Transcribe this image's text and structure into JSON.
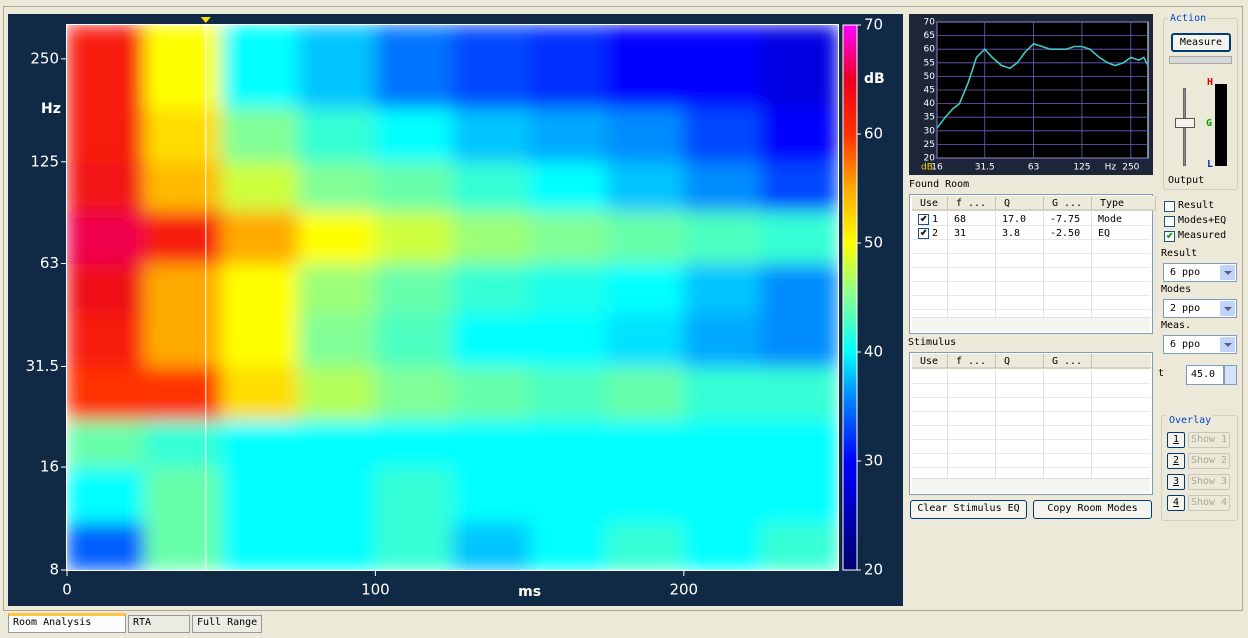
{
  "chart_data": [
    {
      "type": "heatmap",
      "y_label": "Hz",
      "x_label": "ms",
      "colorbar_label": "dB",
      "xlim": [
        0,
        250
      ],
      "xticks": [
        0,
        100,
        200
      ],
      "ylim": [
        8,
        314
      ],
      "yticks": [
        8,
        16,
        31.5,
        63,
        125,
        250
      ],
      "log_y": true,
      "clim": [
        20,
        70
      ],
      "cticks": [
        20,
        30,
        40,
        50,
        60,
        70
      ],
      "cursor_x": 45,
      "x_edges": [
        0,
        25,
        50,
        75,
        100,
        125,
        150,
        175,
        200,
        225,
        250
      ],
      "y_edges": [
        8,
        11,
        16,
        22,
        31.5,
        45,
        63,
        90,
        125,
        180,
        314
      ],
      "values": [
        [
          34,
          44,
          40,
          40,
          42,
          38,
          40,
          42,
          40,
          42
        ],
        [
          40,
          44,
          40,
          40,
          42,
          40,
          40,
          40,
          40,
          40
        ],
        [
          44,
          42,
          40,
          40,
          40,
          40,
          40,
          40,
          40,
          40
        ],
        [
          60,
          60,
          52,
          47,
          45,
          44,
          43,
          44,
          42,
          42
        ],
        [
          62,
          55,
          50,
          45,
          43,
          40,
          40,
          39,
          37,
          36
        ],
        [
          64,
          55,
          50,
          46,
          44,
          42,
          41,
          40,
          38,
          36
        ],
        [
          66,
          62,
          55,
          50,
          48,
          46,
          45,
          44,
          43,
          42
        ],
        [
          63,
          54,
          48,
          45,
          44,
          42,
          40,
          38,
          36,
          33
        ],
        [
          62,
          52,
          45,
          42,
          40,
          38,
          37,
          36,
          33,
          30
        ],
        [
          62,
          50,
          40,
          38,
          35,
          33,
          32,
          30,
          30,
          28
        ]
      ]
    },
    {
      "type": "line",
      "x_label": "Hz",
      "y_label": "dB",
      "color": "#40c8c8",
      "grid": true,
      "log_x": true,
      "xlim": [
        16,
        319
      ],
      "xticks": [
        16,
        31.5,
        63,
        125,
        250
      ],
      "ylim": [
        20,
        70
      ],
      "yticks": [
        20,
        25,
        30,
        35,
        40,
        45,
        50,
        55,
        60,
        65,
        70
      ],
      "x": [
        16,
        18,
        20,
        22,
        25,
        28,
        31.5,
        35,
        40,
        45,
        50,
        56,
        63,
        71,
        80,
        90,
        100,
        112,
        125,
        140,
        160,
        180,
        200,
        225,
        250,
        280,
        300,
        319
      ],
      "values": [
        31,
        35,
        38,
        40,
        48,
        57,
        60,
        57,
        54,
        53,
        55,
        59,
        62,
        61,
        60,
        60,
        60,
        61,
        61,
        60,
        57,
        55,
        54,
        55,
        57,
        56,
        57,
        54
      ]
    }
  ],
  "found_room": {
    "title": "Found Room",
    "columns": [
      "Use",
      "f ...",
      "Q",
      "G ...",
      "Type"
    ],
    "rows": [
      {
        "checked": true,
        "cells": [
          "1",
          "68",
          "17.0",
          "-7.75",
          "Mode"
        ]
      },
      {
        "checked": true,
        "cells": [
          "2",
          "31",
          "3.8",
          "-2.50",
          "EQ"
        ]
      }
    ]
  },
  "stimulus": {
    "title": "Stimulus",
    "columns": [
      "Use",
      "f ...",
      "Q",
      "G ..."
    ],
    "rows": []
  },
  "buttons": [
    "Clear Stimulus EQ",
    "Copy Room Modes"
  ],
  "action": {
    "title": "Action",
    "measure": "Measure",
    "output": "Output",
    "meter": [
      "H",
      "G",
      "L"
    ]
  },
  "display": [
    {
      "label": "Result",
      "checked": false
    },
    {
      "label": "Modes+EQ",
      "checked": false
    },
    {
      "label": "Measured",
      "checked": true
    }
  ],
  "selects": [
    {
      "label": "Result",
      "value": "6 ppo"
    },
    {
      "label": "Modes",
      "value": "2 ppo"
    },
    {
      "label": "Meas.",
      "value": "6 ppo"
    }
  ],
  "time": {
    "label": "t",
    "value": "45.0"
  },
  "overlay": {
    "title": "Overlay",
    "buttons": [
      {
        "number": "1",
        "label": "Show 1"
      },
      {
        "number": "2",
        "label": "Show 2"
      },
      {
        "number": "3",
        "label": "Show 3"
      },
      {
        "number": "4",
        "label": "Show 4"
      }
    ]
  },
  "tabs": [
    "Room Analysis",
    "RTA",
    "Full Range"
  ]
}
